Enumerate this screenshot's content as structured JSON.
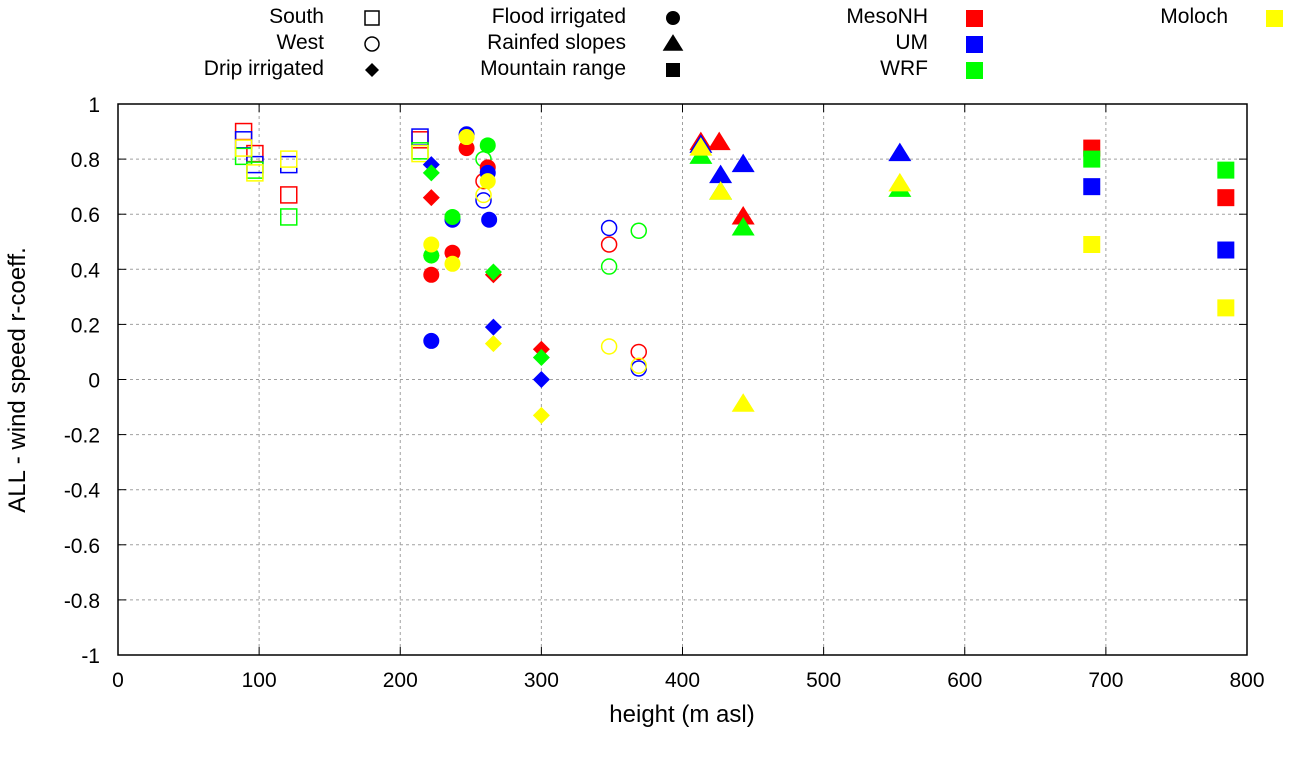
{
  "chart_data": {
    "type": "scatter",
    "title": "",
    "xlabel": "height (m asl)",
    "ylabel": "ALL - wind speed r-coeff.",
    "xlim": [
      0,
      800
    ],
    "ylim": [
      -1,
      1
    ],
    "xticks": [
      "0",
      "100",
      "200",
      "300",
      "400",
      "500",
      "600",
      "700",
      "800"
    ],
    "yticks": [
      "1",
      "0.8",
      "0.6",
      "0.4",
      "0.2",
      "0",
      "-0.2",
      "-0.4",
      "-0.6",
      "-0.8",
      "-1"
    ],
    "grid": true,
    "legend_placement": "top-outside",
    "legend": {
      "regions": [
        {
          "name": "South",
          "marker": "open-square"
        },
        {
          "name": "West",
          "marker": "open-circle"
        },
        {
          "name": "Drip irrigated",
          "marker": "filled-diamond"
        },
        {
          "name": "Flood irrigated",
          "marker": "filled-circle"
        },
        {
          "name": "Rainfed slopes",
          "marker": "filled-triangle"
        },
        {
          "name": "Mountain range",
          "marker": "filled-square"
        }
      ],
      "models": [
        {
          "name": "MesoNH",
          "color": "#ff0000"
        },
        {
          "name": "UM",
          "color": "#0000ff"
        },
        {
          "name": "WRF",
          "color": "#00ff00"
        },
        {
          "name": "Moloch",
          "color": "#ffff00"
        }
      ]
    },
    "series": [
      {
        "region": "South",
        "model": "MesoNH",
        "points": [
          [
            89,
            0.9
          ],
          [
            97,
            0.82
          ],
          [
            121,
            0.67
          ],
          [
            214,
            0.87
          ]
        ]
      },
      {
        "region": "South",
        "model": "UM",
        "points": [
          [
            89,
            0.87
          ],
          [
            97,
            0.78
          ],
          [
            121,
            0.78
          ],
          [
            214,
            0.88
          ]
        ]
      },
      {
        "region": "South",
        "model": "WRF",
        "points": [
          [
            89,
            0.81
          ],
          [
            97,
            0.76
          ],
          [
            121,
            0.59
          ],
          [
            214,
            0.83
          ]
        ]
      },
      {
        "region": "South",
        "model": "Moloch",
        "points": [
          [
            89,
            0.84
          ],
          [
            97,
            0.75
          ],
          [
            121,
            0.8
          ],
          [
            214,
            0.82
          ]
        ]
      },
      {
        "region": "West",
        "model": "MesoNH",
        "points": [
          [
            259,
            0.72
          ],
          [
            348,
            0.49
          ],
          [
            369,
            0.1
          ]
        ]
      },
      {
        "region": "West",
        "model": "UM",
        "points": [
          [
            259,
            0.65
          ],
          [
            348,
            0.55
          ],
          [
            369,
            0.04
          ]
        ]
      },
      {
        "region": "West",
        "model": "WRF",
        "points": [
          [
            259,
            0.8
          ],
          [
            348,
            0.41
          ],
          [
            369,
            0.54
          ]
        ]
      },
      {
        "region": "West",
        "model": "Moloch",
        "points": [
          [
            259,
            0.67
          ],
          [
            348,
            0.12
          ],
          [
            369,
            0.05
          ]
        ]
      },
      {
        "region": "Drip irrigated",
        "model": "MesoNH",
        "points": [
          [
            222,
            0.66
          ],
          [
            266,
            0.38
          ],
          [
            300,
            0.11
          ]
        ]
      },
      {
        "region": "Drip irrigated",
        "model": "UM",
        "points": [
          [
            222,
            0.78
          ],
          [
            266,
            0.19
          ],
          [
            300,
            0.0
          ]
        ]
      },
      {
        "region": "Drip irrigated",
        "model": "WRF",
        "points": [
          [
            222,
            0.75
          ],
          [
            266,
            0.39
          ],
          [
            300,
            0.08
          ]
        ]
      },
      {
        "region": "Drip irrigated",
        "model": "Moloch",
        "points": [
          [
            222,
            0.45
          ],
          [
            266,
            0.13
          ],
          [
            300,
            -0.13
          ]
        ]
      },
      {
        "region": "Flood irrigated",
        "model": "MesoNH",
        "points": [
          [
            222,
            0.38
          ],
          [
            237,
            0.46
          ],
          [
            247,
            0.84
          ],
          [
            262,
            0.77
          ]
        ]
      },
      {
        "region": "Flood irrigated",
        "model": "UM",
        "points": [
          [
            222,
            0.14
          ],
          [
            237,
            0.58
          ],
          [
            247,
            0.89
          ],
          [
            262,
            0.75
          ],
          [
            263,
            0.58
          ]
        ]
      },
      {
        "region": "Flood irrigated",
        "model": "WRF",
        "points": [
          [
            222,
            0.45
          ],
          [
            237,
            0.59
          ],
          [
            262,
            0.85
          ]
        ]
      },
      {
        "region": "Flood irrigated",
        "model": "Moloch",
        "points": [
          [
            222,
            0.49
          ],
          [
            237,
            0.42
          ],
          [
            247,
            0.88
          ],
          [
            262,
            0.72
          ]
        ]
      },
      {
        "region": "Rainfed slopes",
        "model": "MesoNH",
        "points": [
          [
            413,
            0.86
          ],
          [
            426,
            0.86
          ],
          [
            443,
            0.59
          ]
        ]
      },
      {
        "region": "Rainfed slopes",
        "model": "UM",
        "points": [
          [
            413,
            0.85
          ],
          [
            427,
            0.74
          ],
          [
            443,
            0.78
          ],
          [
            554,
            0.82
          ]
        ]
      },
      {
        "region": "Rainfed slopes",
        "model": "WRF",
        "points": [
          [
            413,
            0.81
          ],
          [
            427,
            0.68
          ],
          [
            443,
            0.55
          ],
          [
            554,
            0.69
          ]
        ]
      },
      {
        "region": "Rainfed slopes",
        "model": "Moloch",
        "points": [
          [
            413,
            0.84
          ],
          [
            427,
            0.68
          ],
          [
            443,
            -0.09
          ],
          [
            554,
            0.71
          ]
        ]
      },
      {
        "region": "Mountain range",
        "model": "MesoNH",
        "points": [
          [
            690,
            0.84
          ],
          [
            785,
            0.66
          ]
        ]
      },
      {
        "region": "Mountain range",
        "model": "UM",
        "points": [
          [
            690,
            0.7
          ],
          [
            785,
            0.47
          ]
        ]
      },
      {
        "region": "Mountain range",
        "model": "WRF",
        "points": [
          [
            690,
            0.8
          ],
          [
            785,
            0.76
          ]
        ]
      },
      {
        "region": "Mountain range",
        "model": "Moloch",
        "points": [
          [
            690,
            0.49
          ],
          [
            785,
            0.26
          ]
        ]
      }
    ]
  }
}
